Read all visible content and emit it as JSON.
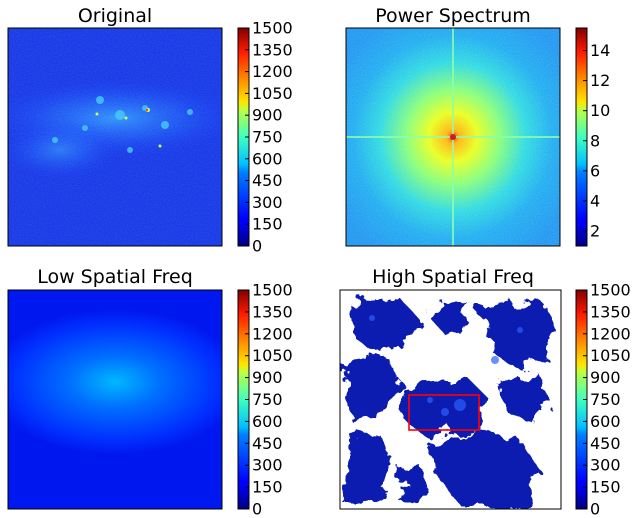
{
  "figure": {
    "panels": [
      {
        "title": "Original"
      },
      {
        "title": "Power Spectrum"
      },
      {
        "title": "Low Spatial Freq"
      },
      {
        "title": "High Spatial Freq"
      }
    ]
  },
  "chart_data": [
    {
      "type": "heatmap",
      "title": "Original",
      "colormap": "jet",
      "grid": false,
      "colorbar": {
        "range": [
          0,
          1500
        ],
        "ticks": [
          "0",
          "150",
          "300",
          "450",
          "600",
          "750",
          "900",
          "1050",
          "1200",
          "1350",
          "1500"
        ]
      },
      "description_values": {
        "background_level": 150,
        "band_peak_level": 1500
      }
    },
    {
      "type": "heatmap",
      "title": "Power Spectrum",
      "colormap": "jet",
      "grid": false,
      "colorbar": {
        "range": [
          1,
          15.5
        ],
        "ticks": [
          "2",
          "4",
          "6",
          "8",
          "10",
          "12",
          "14"
        ]
      },
      "description_values": {
        "center_peak_level": 15,
        "edge_level": 4
      }
    },
    {
      "type": "heatmap",
      "title": "Low Spatial Freq",
      "colormap": "jet",
      "grid": false,
      "colorbar": {
        "range": [
          0,
          1500
        ],
        "ticks": [
          "0",
          "150",
          "300",
          "450",
          "600",
          "750",
          "900",
          "1050",
          "1200",
          "1350",
          "1500"
        ]
      },
      "description_values": {
        "center_level": 480,
        "edge_level": 100
      }
    },
    {
      "type": "heatmap",
      "title": "High Spatial Freq",
      "colormap": "jet",
      "grid": false,
      "colorbar": {
        "range": [
          0,
          1500
        ],
        "ticks": [
          "0",
          "150",
          "300",
          "450",
          "600",
          "750",
          "900",
          "1050",
          "1200",
          "1350",
          "1500"
        ]
      },
      "masked_color": "#ffffff",
      "highlight_box_color": "#ff0000"
    }
  ]
}
